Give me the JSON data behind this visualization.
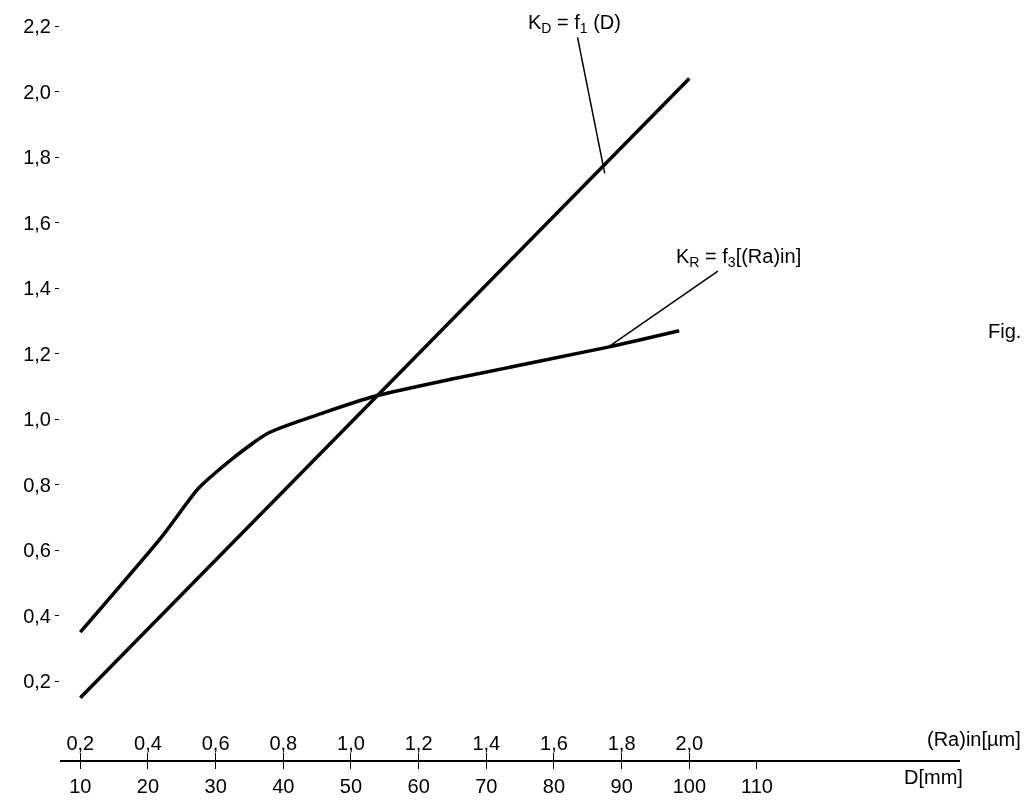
{
  "chart_data": {
    "type": "line",
    "xlabel": "D[mm]",
    "x2label": "(Ra)in[µm]",
    "xlim": [
      7,
      140
    ],
    "xticks": [
      10,
      20,
      30,
      40,
      50,
      60,
      70,
      80,
      90,
      100,
      110
    ],
    "x2lim": [
      0.14,
      2.8
    ],
    "x2ticks": [
      {
        "value": 0.2,
        "label": "0,2"
      },
      {
        "value": 0.4,
        "label": "0,4"
      },
      {
        "value": 0.6,
        "label": "0,6"
      },
      {
        "value": 0.8,
        "label": "0,8"
      },
      {
        "value": 1.0,
        "label": "1,0"
      },
      {
        "value": 1.2,
        "label": "1,2"
      },
      {
        "value": 1.4,
        "label": "1,4"
      },
      {
        "value": 1.6,
        "label": "1,6"
      },
      {
        "value": 1.8,
        "label": "1,8"
      },
      {
        "value": 2.0,
        "label": "2,0"
      }
    ],
    "ylim": [
      -0.04,
      2.2
    ],
    "yticks": [
      {
        "value": 0.2,
        "label": "0,2"
      },
      {
        "value": 0.4,
        "label": "0,4"
      },
      {
        "value": 0.6,
        "label": "0,6"
      },
      {
        "value": 0.8,
        "label": "0,8"
      },
      {
        "value": 1.0,
        "label": "1,0"
      },
      {
        "value": 1.2,
        "label": "1,2"
      },
      {
        "value": 1.4,
        "label": "1,4"
      },
      {
        "value": 1.6,
        "label": "1,6"
      },
      {
        "value": 1.8,
        "label": "1,8"
      },
      {
        "value": 2.0,
        "label": "2,0"
      },
      {
        "value": 2.2,
        "label": "2,2"
      }
    ],
    "series": [
      {
        "color": "#000000",
        "x": [
          10,
          100
        ],
        "values": [
          0.15,
          2.04
        ]
      },
      {
        "color": "#000000",
        "axis": "x2",
        "x": [
          0.2,
          0.44,
          0.55,
          0.65,
          0.76,
          0.92,
          1.07,
          1.31,
          1.76,
          1.97
        ],
        "values": [
          0.35,
          0.64,
          0.79,
          0.88,
          0.96,
          1.02,
          1.07,
          1.125,
          1.22,
          1.27
        ]
      }
    ],
    "annotations": [
      {
        "text": "K$_{D}$ = f$_{1}$ (D)",
        "x": 87.5,
        "y": 1.75
      },
      {
        "text": "K$_{R}$ = f$_{3}$[(Ra)in]",
        "x": 88,
        "y": 1.22
      },
      "Fig."
    ],
    "marker": "none",
    "line_style": "solid"
  }
}
